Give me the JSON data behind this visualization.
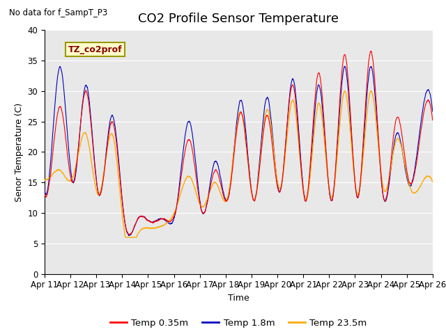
{
  "title": "CO2 Profile Sensor Temperature",
  "subtitle": "No data for f_SampT_P3",
  "xlabel": "Time",
  "ylabel": "Senor Temperature (C)",
  "ylim": [
    0,
    40
  ],
  "yticks": [
    0,
    5,
    10,
    15,
    20,
    25,
    30,
    35,
    40
  ],
  "date_labels": [
    "Apr 11",
    "Apr 12",
    "Apr 13",
    "Apr 14",
    "Apr 15",
    "Apr 16",
    "Apr 17",
    "Apr 18",
    "Apr 19",
    "Apr 20",
    "Apr 21",
    "Apr 22",
    "Apr 23",
    "Apr 24",
    "Apr 25",
    "Apr 26"
  ],
  "legend_label_box": "TZ_co2prof",
  "line_colors": {
    "temp035": "#ff0000",
    "temp18": "#0000bb",
    "temp235": "#ffaa00"
  },
  "legend_labels": [
    "Temp 0.35m",
    "Temp 1.8m",
    "Temp 23.5m"
  ],
  "bg_color": "#e8e8e8",
  "fig_bg": "#ffffff",
  "grid_color": "#ffffff",
  "title_fontsize": 13,
  "label_fontsize": 9,
  "tick_fontsize": 8.5
}
